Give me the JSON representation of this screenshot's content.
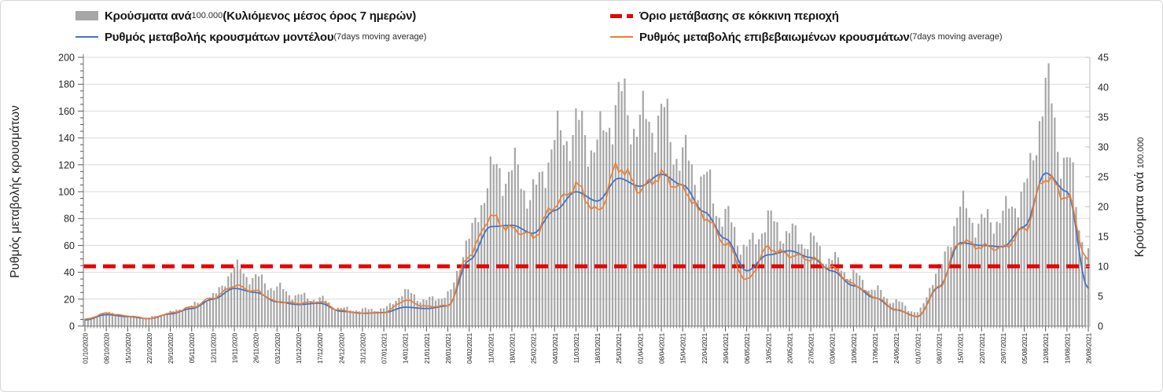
{
  "legend": {
    "items": [
      {
        "name": "cases-per-100k-bars",
        "swatch": "bar",
        "a": "Κρούσματα ανά ",
        "b": "100.000 ",
        "c": "(Κυλιόμενος μέσος όρος 7 ημερών)",
        "d": ""
      },
      {
        "name": "model-rate-line",
        "swatch": "line-blue",
        "a": "Ρυθμός μεταβολής κρουσμάτων μοντέλου ",
        "b": "",
        "c": "",
        "d": "(7days moving average)"
      },
      {
        "name": "red-zone-threshold",
        "swatch": "dash-red",
        "a": "Όριο μετάβασης σε κόκκινη περιοχή",
        "b": "",
        "c": "",
        "d": ""
      },
      {
        "name": "confirmed-rate-line",
        "swatch": "line-orange",
        "a": "Ρυθμός μεταβολής επιβεβαιωμένων κρουσμάτων ",
        "b": "",
        "c": "",
        "d": "(7days moving average)"
      }
    ]
  },
  "left_axis": {
    "title": "Ρυθμός μεταβολής κρουσμάτων",
    "min": 0,
    "max": 200,
    "step": 20,
    "minor_step": 5,
    "ticks": [
      0,
      20,
      40,
      60,
      80,
      100,
      120,
      140,
      160,
      180,
      200
    ]
  },
  "right_axis": {
    "title_main": "Κρούσματα ανά ",
    "title_small": "100.000",
    "min": 0,
    "max": 45,
    "step": 5,
    "ticks": [
      0,
      5,
      10,
      15,
      20,
      25,
      30,
      35,
      40,
      45
    ]
  },
  "colors": {
    "bars": "#a6a6a6",
    "model_line": "#4472c4",
    "confirmed_line": "#ed7d31",
    "threshold": "#e80000",
    "grid": "#d9d9d9",
    "axis_line": "#8c8c8c",
    "tick": "#595959",
    "label_text": "#262626"
  },
  "chart_data": {
    "type": "bar+line",
    "title": "",
    "x_labels": [
      "01/10/2020",
      "08/10/2020",
      "15/10/2020",
      "22/10/2020",
      "29/10/2020",
      "05/11/2020",
      "12/11/2020",
      "19/11/2020",
      "26/11/2020",
      "03/12/2020",
      "10/12/2020",
      "17/12/2020",
      "24/12/2020",
      "31/12/2020",
      "07/01/2021",
      "14/01/2021",
      "21/01/2021",
      "28/01/2021",
      "04/02/2021",
      "11/02/2021",
      "18/02/2021",
      "25/02/2021",
      "04/03/2021",
      "11/03/2021",
      "18/03/2021",
      "25/03/2021",
      "01/04/2021",
      "08/04/2021",
      "15/04/2021",
      "22/04/2021",
      "29/04/2021",
      "06/05/2021",
      "13/05/2021",
      "20/05/2021",
      "27/05/2021",
      "03/06/2021",
      "10/06/2021",
      "17/06/2021",
      "24/06/2021",
      "01/07/2021",
      "08/07/2021",
      "15/07/2021",
      "22/07/2021",
      "29/07/2021",
      "05/08/2021",
      "12/08/2021",
      "19/08/2021",
      "26/08/2021"
    ],
    "sampling_note": "values sampled at each weekly x label; bars are daily values (7-day rolling mean), rendered by interpolation",
    "threshold": {
      "label": "Όριο μετάβασης σε κόκκινη περιοχή",
      "axis": "right",
      "value": 10
    },
    "series": [
      {
        "name": "Κρούσματα ανά 100.000 (Κυλιόμενος μέσος όρος 7 ημερών)",
        "type": "bar",
        "axis": "right",
        "values": [
          1.1,
          2.1,
          1.6,
          1.4,
          2.3,
          3.4,
          5.0,
          9.6,
          8.0,
          6.3,
          5.0,
          4.5,
          2.9,
          2.7,
          2.9,
          5.6,
          4.3,
          5.2,
          14.6,
          25.3,
          26.0,
          22.0,
          30.8,
          33.0,
          30.4,
          37.6,
          33.8,
          34.9,
          28.0,
          24.3,
          18.0,
          13.0,
          17.5,
          15.4,
          14.0,
          11.0,
          8.4,
          6.0,
          4.0,
          2.3,
          9.4,
          19.5,
          17.2,
          18.5,
          22.5,
          39.0,
          27.0,
          12.0
        ]
      },
      {
        "name": "Ρυθμός μεταβολής κρουσμάτων μοντέλου (7days moving average)",
        "type": "line",
        "axis": "left",
        "values": [
          4.5,
          8.5,
          7.0,
          5.5,
          9.0,
          13.0,
          20.0,
          28.0,
          25.0,
          18.0,
          16.0,
          17.0,
          11.0,
          9.5,
          10.0,
          14.0,
          13.0,
          15.0,
          49.0,
          74.0,
          75.0,
          69.0,
          86.0,
          100.0,
          93.0,
          110.0,
          104.0,
          113.0,
          105.0,
          85.0,
          65.0,
          41.0,
          53.0,
          56.0,
          51.0,
          41.0,
          30.0,
          21.0,
          12.0,
          7.0,
          29.0,
          62.0,
          60.0,
          59.0,
          74.0,
          114.0,
          100.0,
          28.0
        ]
      },
      {
        "name": "Ρυθμός μεταβολής επιβεβαιωμένων κρουσμάτων (7days moving average)",
        "type": "line",
        "axis": "left",
        "values": [
          5.0,
          9.5,
          7.5,
          5.5,
          9.5,
          14.0,
          21.0,
          30.0,
          26.0,
          18.0,
          17.0,
          18.0,
          11.5,
          9.5,
          10.0,
          19.0,
          14.5,
          15.0,
          53.0,
          81.0,
          72.0,
          67.0,
          90.0,
          104.0,
          85.0,
          119.0,
          102.0,
          112.0,
          102.0,
          82.0,
          62.0,
          34.0,
          58.0,
          53.0,
          50.0,
          43.0,
          31.0,
          21.5,
          12.0,
          7.0,
          29.0,
          63.0,
          59.0,
          58.0,
          72.0,
          111.0,
          96.0,
          48.0
        ]
      }
    ],
    "ylim_left": [
      0,
      200
    ],
    "ylim_right": [
      0,
      45
    ],
    "grid": "horizontal-only",
    "legend_position": "top"
  }
}
